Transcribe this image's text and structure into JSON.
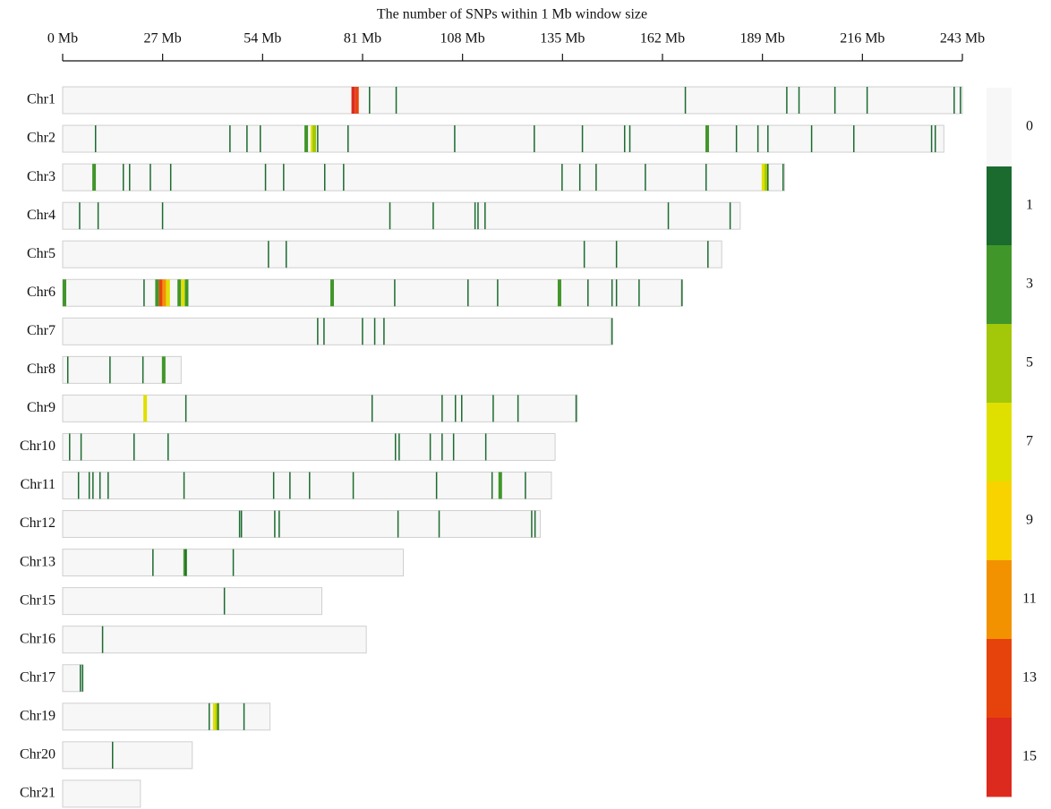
{
  "chart_data": {
    "type": "chromosome",
    "title": "The number of SNPs within 1 Mb window size",
    "xlim": [
      0,
      243
    ],
    "xticks": [
      {
        "value": 0,
        "label": "0 Mb"
      },
      {
        "value": 27,
        "label": "27 Mb"
      },
      {
        "value": 54,
        "label": "54 Mb"
      },
      {
        "value": 81,
        "label": "81 Mb"
      },
      {
        "value": 108,
        "label": "108 Mb"
      },
      {
        "value": 135,
        "label": "135 Mb"
      },
      {
        "value": 162,
        "label": "162 Mb"
      },
      {
        "value": 189,
        "label": "189 Mb"
      },
      {
        "value": 216,
        "label": "216 Mb"
      },
      {
        "value": 243,
        "label": "243 Mb"
      }
    ],
    "categories": [
      "Chr1",
      "Chr2",
      "Chr3",
      "Chr4",
      "Chr5",
      "Chr6",
      "Chr7",
      "Chr8",
      "Chr9",
      "Chr10",
      "Chr11",
      "Chr12",
      "Chr13",
      "Chr15",
      "Chr16",
      "Chr17",
      "Chr19",
      "Chr20",
      "Chr21"
    ],
    "lengths": [
      243,
      238,
      195,
      183,
      178,
      167,
      148,
      32,
      139,
      133,
      132,
      129,
      92,
      70,
      82,
      5.5,
      56,
      35,
      21
    ],
    "snps": [
      {
        "pos": [
          78,
          79,
          82.7,
          89.9,
          168,
          195.4,
          198.7,
          208.4,
          217.1,
          240.6,
          242.3
        ],
        "count": [
          15,
          13,
          1,
          1,
          1,
          1,
          1,
          1,
          1,
          1,
          1
        ]
      },
      {
        "pos": [
          8.7,
          45,
          49.6,
          53.2,
          65.3,
          67,
          67.5,
          68.7,
          76.9,
          105.7,
          127.2,
          140.2,
          151.6,
          153,
          173.6,
          181.8,
          187.6,
          190.3,
          202.1,
          213.5,
          234.5,
          235.5
        ],
        "count": [
          1,
          1,
          1,
          1,
          3,
          7,
          5,
          1,
          1,
          1,
          1,
          1,
          1,
          1,
          3,
          1,
          1,
          1,
          1,
          1,
          1,
          1
        ]
      },
      {
        "pos": [
          8,
          16.2,
          17.9,
          23.5,
          29,
          54.6,
          59.5,
          70.6,
          75.7,
          134.7,
          139.5,
          143.9,
          157.2,
          173.6,
          188.8,
          189.6,
          190.3,
          194.4
        ],
        "count": [
          3,
          1,
          1,
          1,
          1,
          1,
          1,
          1,
          1,
          1,
          1,
          1,
          1,
          1,
          7,
          5,
          1,
          1
        ]
      },
      {
        "pos": [
          4.4,
          9.4,
          26.8,
          88.2,
          99.9,
          111.2,
          112,
          113.9,
          163.4,
          180.1
        ],
        "count": [
          1,
          1,
          1,
          1,
          1,
          1,
          1,
          1,
          1,
          1
        ]
      },
      {
        "pos": [
          55.4,
          60.2,
          140.7,
          149.4,
          174.1
        ],
        "count": [
          1,
          1,
          1,
          1,
          1
        ]
      },
      {
        "pos": [
          0,
          21.8,
          25,
          26,
          27,
          28,
          31,
          32,
          33,
          72.3,
          89.5,
          109.3,
          117.3,
          133.7,
          141.7,
          148.2,
          149.4,
          155.5,
          167.1
        ],
        "count": [
          3,
          1,
          3,
          13,
          11,
          7,
          3,
          7,
          3,
          3,
          1,
          1,
          1,
          3,
          1,
          1,
          1,
          1,
          1
        ]
      },
      {
        "pos": [
          68.7,
          70.4,
          80.8,
          84.1,
          86.6,
          148.2
        ],
        "count": [
          1,
          1,
          1,
          1,
          1,
          1
        ]
      },
      {
        "pos": [
          1.2,
          12.6,
          21.5,
          26.8
        ],
        "count": [
          1,
          1,
          1,
          3
        ]
      },
      {
        "pos": [
          21.8,
          33.1,
          83.4,
          102.3,
          105.9,
          107.6,
          116.1,
          122.8,
          138.5
        ],
        "count": [
          7,
          1,
          1,
          1,
          1,
          1,
          1,
          1,
          1
        ]
      },
      {
        "pos": [
          1.7,
          4.8,
          19.1,
          28.3,
          89.7,
          90.7,
          99.1,
          102.3,
          105.4,
          114.1
        ],
        "count": [
          1,
          1,
          1,
          1,
          1,
          1,
          1,
          1,
          1,
          1
        ]
      },
      {
        "pos": [
          4.1,
          7,
          8,
          9.9,
          12.1,
          32.6,
          56.8,
          61.2,
          66.5,
          78.3,
          100.8,
          115.8,
          117.7,
          124.8
        ],
        "count": [
          1,
          1,
          1,
          1,
          1,
          1,
          1,
          1,
          1,
          1,
          1,
          1,
          3,
          1
        ]
      },
      {
        "pos": [
          47.6,
          48.1,
          57.1,
          58.3,
          90.4,
          101.5,
          126.5,
          127.4
        ],
        "count": [
          1,
          1,
          1,
          1,
          1,
          1,
          1,
          1
        ]
      },
      {
        "pos": [
          24.2,
          32.6,
          33.1,
          45.9
        ],
        "count": [
          1,
          3,
          1,
          1
        ]
      },
      {
        "pos": [
          43.5
        ],
        "count": [
          1
        ]
      },
      {
        "pos": [
          10.6
        ],
        "count": [
          1
        ]
      },
      {
        "pos": [
          4.6,
          5.2
        ],
        "count": [
          1,
          1
        ]
      },
      {
        "pos": [
          39.4,
          40.6,
          41.3,
          41.8,
          48.8
        ],
        "count": [
          1,
          7,
          5,
          1,
          1
        ]
      },
      {
        "pos": [
          13.3
        ],
        "count": [
          1
        ]
      },
      {
        "pos": [],
        "count": []
      }
    ],
    "legend": {
      "values": [
        0,
        1,
        3,
        5,
        7,
        9,
        11,
        13,
        15
      ],
      "colors": [
        "#f7f7f7",
        "#1b6b2f",
        "#41962a",
        "#a3c80a",
        "#e0e000",
        "#f8d300",
        "#f39200",
        "#e6430c",
        "#dc2a1e"
      ]
    },
    "bar_color": "#f7f7f7"
  }
}
